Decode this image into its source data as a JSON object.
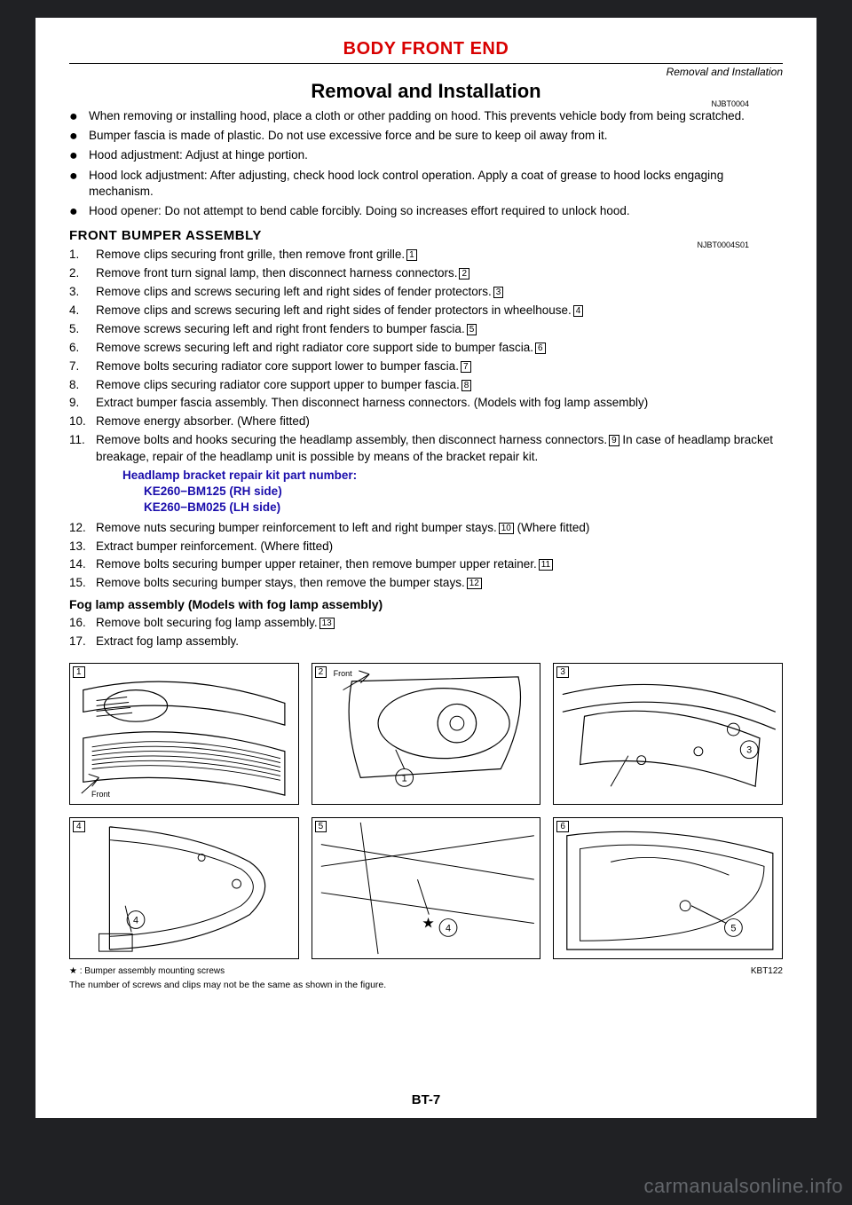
{
  "section_title": "BODY FRONT END",
  "right_header": "Removal and Installation",
  "title": "Removal and Installation",
  "doccode_top": "NJBT0004",
  "bullets": [
    "When removing or installing hood, place a cloth or other padding on hood. This prevents vehicle body from being scratched.",
    "Bumper fascia is made of plastic. Do not use excessive force and be sure to keep oil away from it.",
    "Hood adjustment: Adjust at hinge portion.",
    "Hood lock adjustment: After adjusting, check hood lock control operation. Apply a coat of grease to hood locks engaging mechanism.",
    "Hood opener: Do not attempt to bend cable forcibly. Doing so increases effort required to unlock hood."
  ],
  "h3": "FRONT BUMPER ASSEMBLY",
  "doccode_h3": "NJBT0004S01",
  "steps": [
    {
      "n": "1.",
      "t": "Remove clips securing front grille, then remove front grille.",
      "ref": "1"
    },
    {
      "n": "2.",
      "t": "Remove front turn signal lamp, then disconnect harness connectors.",
      "ref": "2"
    },
    {
      "n": "3.",
      "t": "Remove clips and screws securing left and right sides of fender protectors.",
      "ref": "3"
    },
    {
      "n": "4.",
      "t": "Remove clips and screws securing left and right sides of fender protectors in wheelhouse.",
      "ref": "4"
    },
    {
      "n": "5.",
      "t": "Remove screws securing left and right front fenders to bumper fascia.",
      "ref": "5"
    },
    {
      "n": "6.",
      "t": "Remove screws securing left and right radiator core support side to bumper fascia.",
      "ref": "6"
    },
    {
      "n": "7.",
      "t": "Remove bolts securing radiator core support lower to bumper fascia.",
      "ref": "7"
    },
    {
      "n": "8.",
      "t": "Remove clips securing radiator core support upper to bumper fascia.",
      "ref": "8"
    },
    {
      "n": "9.",
      "t": "Extract bumper fascia assembly. Then disconnect harness connectors. (Models with fog lamp assembly)"
    },
    {
      "n": "10.",
      "t": "Remove energy absorber. (Where fitted)"
    },
    {
      "n": "11.",
      "t": "Remove bolts and hooks securing the headlamp assembly, then disconnect harness connectors.",
      "ref": "9",
      "tail": "  In case of headlamp bracket breakage, repair of the headlamp unit is possible by means of the bracket repair kit."
    }
  ],
  "blue": {
    "l1": "Headlamp bracket repair kit part number:",
    "l2": "KE260−BM125 (RH side)",
    "l3": "KE260−BM025 (LH side)"
  },
  "steps2": [
    {
      "n": "12.",
      "t": "Remove nuts securing bumper reinforcement to left and right bumper stays.",
      "ref": "10",
      "tail": "  (Where fitted)"
    },
    {
      "n": "13.",
      "t": "Extract bumper reinforcement. (Where fitted)"
    },
    {
      "n": "14.",
      "t": "Remove bolts securing bumper upper retainer, then remove bumper upper retainer.",
      "ref": "11"
    },
    {
      "n": "15.",
      "t": "Remove bolts securing bumper stays, then remove the bumper stays.",
      "ref": "12"
    }
  ],
  "subhead": "Fog lamp assembly (Models with fog lamp assembly)",
  "steps3": [
    {
      "n": "16.",
      "t": "Remove bolt securing fog lamp assembly.",
      "ref": "13"
    },
    {
      "n": "17.",
      "t": "Extract fog lamp assembly."
    }
  ],
  "figs": {
    "row1": [
      {
        "tag": "1",
        "front_pos": "bl"
      },
      {
        "tag": "2",
        "front_pos": "tl",
        "circ": "①"
      },
      {
        "tag": "3",
        "circ": "③"
      }
    ],
    "row2": [
      {
        "tag": "4",
        "circ": "④"
      },
      {
        "tag": "5",
        "circ": "④",
        "star": true
      },
      {
        "tag": "6",
        "circ": "⑤"
      }
    ]
  },
  "star_note": "★ : Bumper assembly mounting screws",
  "fig_code": "KBT122",
  "fine_note": "The number of screws and clips may not be the same as shown in the figure.",
  "page_num": "BT-7",
  "watermark": "carmanualsonline.info",
  "front_label": "Front"
}
